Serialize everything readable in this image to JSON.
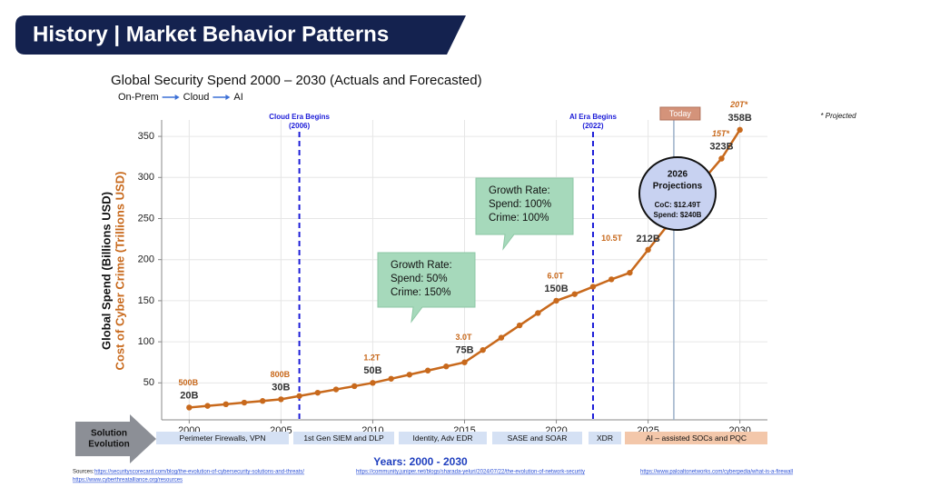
{
  "header": {
    "title": "History | Market Behavior Patterns"
  },
  "chart_data": {
    "type": "line",
    "title": "Global Security Spend 2000 – 2030 (Actuals and Forecasted)",
    "subtitle": [
      "On-Prem",
      "Cloud",
      "AI"
    ],
    "y_label": "Global Spend (Billions USD)",
    "y_label_secondary": "Cost of Cyber Crime (Trillions USD)",
    "x_label": "Years:  2000 - 2030",
    "note": "* Projected",
    "color": "#c8691c",
    "grid": true,
    "x": [
      2000,
      2001,
      2002,
      2003,
      2004,
      2005,
      2006,
      2007,
      2008,
      2009,
      2010,
      2011,
      2012,
      2013,
      2014,
      2015,
      2016,
      2017,
      2018,
      2019,
      2020,
      2021,
      2022,
      2023,
      2024,
      2025,
      2026,
      2027,
      2028,
      2029,
      2030
    ],
    "values": [
      20,
      22,
      24,
      26,
      28,
      30,
      34,
      38,
      42,
      46,
      50,
      55,
      60,
      65,
      70,
      75,
      90,
      105,
      120,
      135,
      150,
      158,
      167,
      176,
      184,
      212,
      240,
      270,
      297,
      323,
      358
    ],
    "value_labels": [
      "20B",
      null,
      null,
      null,
      null,
      "30B",
      null,
      null,
      null,
      null,
      "50B",
      null,
      null,
      null,
      null,
      "75B",
      null,
      null,
      null,
      null,
      "150B",
      null,
      null,
      null,
      null,
      "212B",
      null,
      null,
      null,
      "323B",
      "358B"
    ],
    "crime_labels": [
      "500B",
      null,
      null,
      null,
      null,
      "800B",
      null,
      null,
      null,
      null,
      "1.2T",
      null,
      null,
      null,
      null,
      "3.0T",
      null,
      null,
      null,
      null,
      "6.0T",
      null,
      null,
      null,
      null,
      "10.5T",
      null,
      null,
      null,
      "15T*",
      "20T*"
    ],
    "xlim": [
      1998.5,
      2031.5
    ],
    "xticks": [
      2000,
      2005,
      2010,
      2015,
      2020,
      2025,
      2030
    ],
    "ylim": [
      5,
      370
    ],
    "yticks": [
      50,
      100,
      150,
      200,
      250,
      300,
      350
    ],
    "events": [
      {
        "label": "Cloud Era Begins",
        "sublabel": "(2006)",
        "x": 2006
      },
      {
        "label": "AI Era Begins",
        "sublabel": "(2022)",
        "x": 2022
      }
    ],
    "today": {
      "label": "Today",
      "x": 2026.4
    },
    "callouts": [
      {
        "lines": [
          "Growth Rate:",
          "Spend: 50%",
          "Crime: 150%"
        ]
      },
      {
        "lines": [
          "Growth Rate:",
          "Spend: 100%",
          "Crime: 100%"
        ]
      }
    ],
    "projection": {
      "title_lines": [
        "2026",
        "Projections"
      ],
      "lines": [
        "CoC: $12.49T",
        "Spend: $240B"
      ]
    },
    "solution": {
      "label_lines": [
        "Solution",
        "Evolution"
      ],
      "stages": [
        "Perimeter Firewalls, VPN",
        "1st Gen SIEM and DLP",
        "Identity, Adv EDR",
        "SASE and SOAR",
        "XDR",
        "AI – assisted SOCs and PQC"
      ]
    }
  },
  "sources": {
    "label": "Sources:",
    "links": [
      "https://securityscorecard.com/blog/the-evolution-of-cybersecurity-solutions-and-threats/",
      "https://community.juniper.net/blogs/sharada-yeluri/2024/07/22/the-evolution-of-network-security",
      "https://www.paloaltonetworks.com/cyberpedia/what-is-a-firewall",
      "https://www.cyberthreatalliance.org/resources"
    ]
  }
}
